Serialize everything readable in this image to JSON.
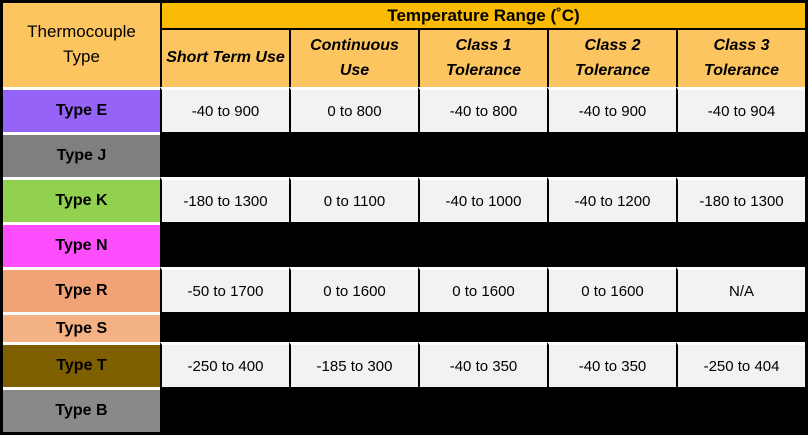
{
  "table": {
    "corner_header": "Thermocouple Type",
    "group_header": "Temperature Range (˚C)",
    "columns": [
      "Short Term Use",
      "Continuous Use",
      "Class 1 Tolerance",
      "Class 2 Tolerance",
      "Class 3 Tolerance"
    ],
    "rows": [
      {
        "type": "Type E",
        "color": "#9663F9",
        "redacted": false,
        "short": false,
        "values": [
          "-40 to 900",
          "0 to 800",
          "-40 to 800",
          "-40 to 900",
          "-40 to 904"
        ]
      },
      {
        "type": "Type J",
        "color": "#7F7F7F",
        "redacted": true,
        "short": false,
        "values": []
      },
      {
        "type": "Type K",
        "color": "#92D050",
        "redacted": false,
        "short": false,
        "values": [
          "-180 to 1300",
          "0 to 1100",
          "-40 to 1000",
          "-40 to 1200",
          "-180 to 1300"
        ]
      },
      {
        "type": "Type N",
        "color": "#FD4DFD",
        "redacted": true,
        "short": false,
        "values": []
      },
      {
        "type": "Type R",
        "color": "#F1A276",
        "redacted": false,
        "short": false,
        "values": [
          "-50 to 1700",
          "0 to 1600",
          "0 to 1600",
          "0 to 1600",
          "N/A"
        ]
      },
      {
        "type": "Type S",
        "color": "#F4B183",
        "redacted": true,
        "short": true,
        "values": []
      },
      {
        "type": "Type T",
        "color": "#7F6000",
        "redacted": false,
        "short": false,
        "values": [
          "-250 to 400",
          "-185 to 300",
          "-40 to 350",
          "-40 to 350",
          "-250 to 404"
        ]
      },
      {
        "type": "Type B",
        "color": "#898989",
        "redacted": true,
        "short": false,
        "values": []
      }
    ],
    "colors": {
      "group_band_bg": "#FBBB04",
      "subheader_bg": "#FCC55F",
      "corner_bg": "#FCC55F",
      "value_cell_bg": "#F2F2F2",
      "redacted_cell_bg": "#000000",
      "grid_vertical": "#000000",
      "grid_horizontal": "#FFFFFF",
      "text": "#000000"
    }
  }
}
